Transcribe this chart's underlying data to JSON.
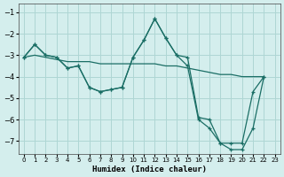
{
  "xlabel": "Humidex (Indice chaleur)",
  "background_color": "#d4eeed",
  "grid_color": "#aed6d4",
  "line_color": "#1a6e65",
  "xlim": [
    -0.5,
    23.5
  ],
  "ylim": [
    -7.6,
    -0.6
  ],
  "x_ticks": [
    0,
    1,
    2,
    3,
    4,
    5,
    6,
    7,
    8,
    9,
    10,
    11,
    12,
    13,
    14,
    15,
    16,
    17,
    18,
    19,
    20,
    21,
    22,
    23
  ],
  "y_ticks": [
    -7,
    -6,
    -5,
    -4,
    -3,
    -2,
    -1
  ],
  "curve1_x": [
    0,
    1,
    2,
    3,
    4,
    5,
    6,
    7,
    8,
    9,
    10,
    11,
    12,
    13,
    14,
    15,
    16,
    17,
    18,
    19,
    20,
    21,
    22
  ],
  "curve1_y": [
    -3.1,
    -2.5,
    -3.0,
    -3.1,
    -3.6,
    -3.5,
    -4.5,
    -4.7,
    -4.6,
    -4.5,
    -3.1,
    -2.3,
    -1.3,
    -2.2,
    -3.0,
    -3.1,
    -5.9,
    -6.0,
    -7.1,
    -7.1,
    -7.1,
    -4.7,
    -4.0
  ],
  "curve2_x": [
    0,
    1,
    2,
    3,
    4,
    5,
    6,
    7,
    8,
    9,
    10,
    11,
    12,
    13,
    14,
    15,
    16,
    17,
    18,
    19,
    20,
    21,
    22
  ],
  "curve2_y": [
    -3.1,
    -2.5,
    -3.0,
    -3.1,
    -3.6,
    -3.5,
    -4.5,
    -4.7,
    -4.6,
    -4.5,
    -3.1,
    -2.3,
    -1.3,
    -2.2,
    -3.0,
    -3.5,
    -6.0,
    -6.4,
    -7.1,
    -7.4,
    -7.4,
    -6.4,
    -4.0
  ],
  "trend_x": [
    0,
    1,
    2,
    3,
    4,
    5,
    6,
    7,
    8,
    9,
    10,
    11,
    12,
    13,
    14,
    15,
    16,
    17,
    18,
    19,
    20,
    21,
    22
  ],
  "trend_y": [
    -3.1,
    -3.0,
    -3.1,
    -3.2,
    -3.3,
    -3.3,
    -3.3,
    -3.4,
    -3.4,
    -3.4,
    -3.4,
    -3.4,
    -3.4,
    -3.5,
    -3.5,
    -3.6,
    -3.7,
    -3.8,
    -3.9,
    -3.9,
    -4.0,
    -4.0,
    -4.0
  ]
}
